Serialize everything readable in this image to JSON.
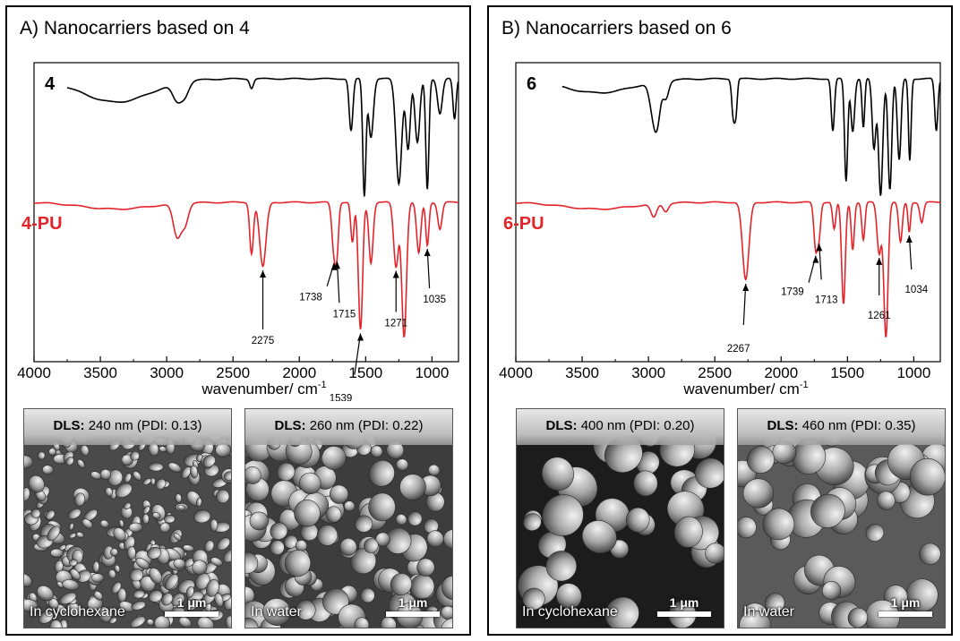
{
  "figure": {
    "panels": [
      {
        "title": "A) Nanocarriers based on 4",
        "top_label": "4",
        "bottom_label": "4-PU",
        "sem": [
          {
            "dls_label": "DLS:",
            "dls_value": " 240 nm (PDI: 0.13)",
            "medium": "In cyclohexane",
            "scale": "1 μm"
          },
          {
            "dls_label": "DLS:",
            "dls_value": " 260 nm (PDI: 0.22)",
            "medium": "In water",
            "scale": "1 μm"
          }
        ]
      },
      {
        "title": "B) Nanocarriers based on 6",
        "top_label": "6",
        "bottom_label": "6-PU",
        "sem": [
          {
            "dls_label": "DLS:",
            "dls_value": " 400 nm (PDI: 0.20)",
            "medium": "In cyclohexane",
            "scale": "1 μm"
          },
          {
            "dls_label": "DLS:",
            "dls_value": " 460 nm (PDI: 0.35)",
            "medium": "In water",
            "scale": "1 μm"
          }
        ]
      }
    ],
    "colors": {
      "top_trace": "#000000",
      "bottom_trace": "#e3242b"
    }
  },
  "chart_data": [
    {
      "type": "line",
      "xlabel": "wavenumber/ cm",
      "xlabel_sup": "-1",
      "xlim": [
        4000,
        800
      ],
      "x_reversed": true,
      "xticks": [
        4000,
        3500,
        3000,
        2500,
        2000,
        1500,
        1000
      ],
      "annotations": [
        {
          "label": "2275",
          "x": 2275
        },
        {
          "label": "1738",
          "x": 1738
        },
        {
          "label": "1715",
          "x": 1715
        },
        {
          "label": "1539",
          "x": 1539
        },
        {
          "label": "1271",
          "x": 1271
        },
        {
          "label": "1035",
          "x": 1035
        }
      ]
    },
    {
      "type": "line",
      "xlabel": "wavenumber/ cm",
      "xlabel_sup": "-1",
      "xlim": [
        4000,
        800
      ],
      "x_reversed": true,
      "xticks": [
        4000,
        3500,
        3000,
        2500,
        2000,
        1500,
        1000
      ],
      "annotations": [
        {
          "label": "2267",
          "x": 2267
        },
        {
          "label": "1739",
          "x": 1739
        },
        {
          "label": "1713",
          "x": 1713
        },
        {
          "label": "1261",
          "x": 1261
        },
        {
          "label": "1034",
          "x": 1034
        }
      ]
    }
  ]
}
